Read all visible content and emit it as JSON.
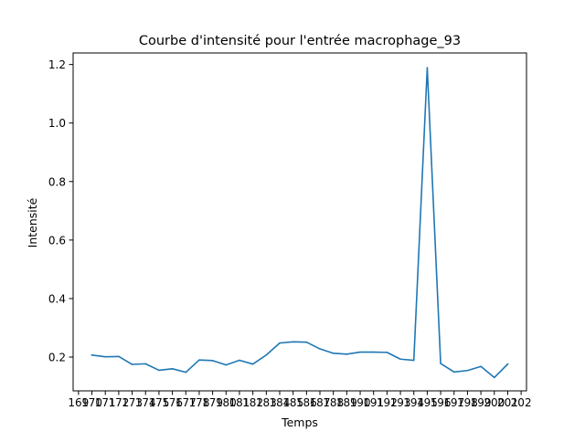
{
  "chart_data": {
    "type": "line",
    "title": "Courbe d'intensité pour l'entrée macrophage_93",
    "xlabel": "Temps",
    "ylabel": "Intensité",
    "xlim": [
      168.6,
      202.4
    ],
    "ylim": [
      0.0845,
      1.2395
    ],
    "grid": false,
    "x_ticks": [
      169,
      170,
      171,
      172,
      173,
      174,
      175,
      176,
      177,
      178,
      179,
      180,
      181,
      182,
      183,
      184,
      185,
      186,
      187,
      188,
      189,
      190,
      191,
      192,
      193,
      194,
      195,
      196,
      197,
      198,
      199,
      200,
      201,
      202
    ],
    "x_tick_labels": [
      "169",
      "170",
      "171",
      "172",
      "173",
      "174",
      "175",
      "176",
      "177",
      "178",
      "179",
      "180",
      "181",
      "182",
      "183",
      "184",
      "185",
      "186",
      "187",
      "188",
      "189",
      "190",
      "191",
      "192",
      "193",
      "194",
      "195",
      "196",
      "197",
      "198",
      "199",
      "200",
      "201",
      "202"
    ],
    "y_ticks": [
      0.2,
      0.4,
      0.6,
      0.8,
      1.0,
      1.2
    ],
    "y_tick_labels": [
      "0.2",
      "0.4",
      "0.6",
      "0.8",
      "1.0",
      "1.2"
    ],
    "color": "#1f77b4",
    "series": [
      {
        "x": [
          170,
          171,
          172,
          173,
          174,
          175,
          176,
          177,
          178,
          179,
          180,
          181,
          182,
          183,
          184,
          185,
          186,
          187,
          188,
          189,
          190,
          191,
          192,
          193,
          194,
          195,
          196,
          197,
          198,
          199,
          200,
          201
        ],
        "values": [
          0.207,
          0.201,
          0.202,
          0.175,
          0.177,
          0.155,
          0.16,
          0.148,
          0.19,
          0.188,
          0.173,
          0.189,
          0.176,
          0.207,
          0.248,
          0.252,
          0.251,
          0.228,
          0.213,
          0.21,
          0.217,
          0.217,
          0.216,
          0.193,
          0.189,
          1.189,
          0.178,
          0.149,
          0.154,
          0.168,
          0.13,
          0.176
        ]
      }
    ]
  }
}
